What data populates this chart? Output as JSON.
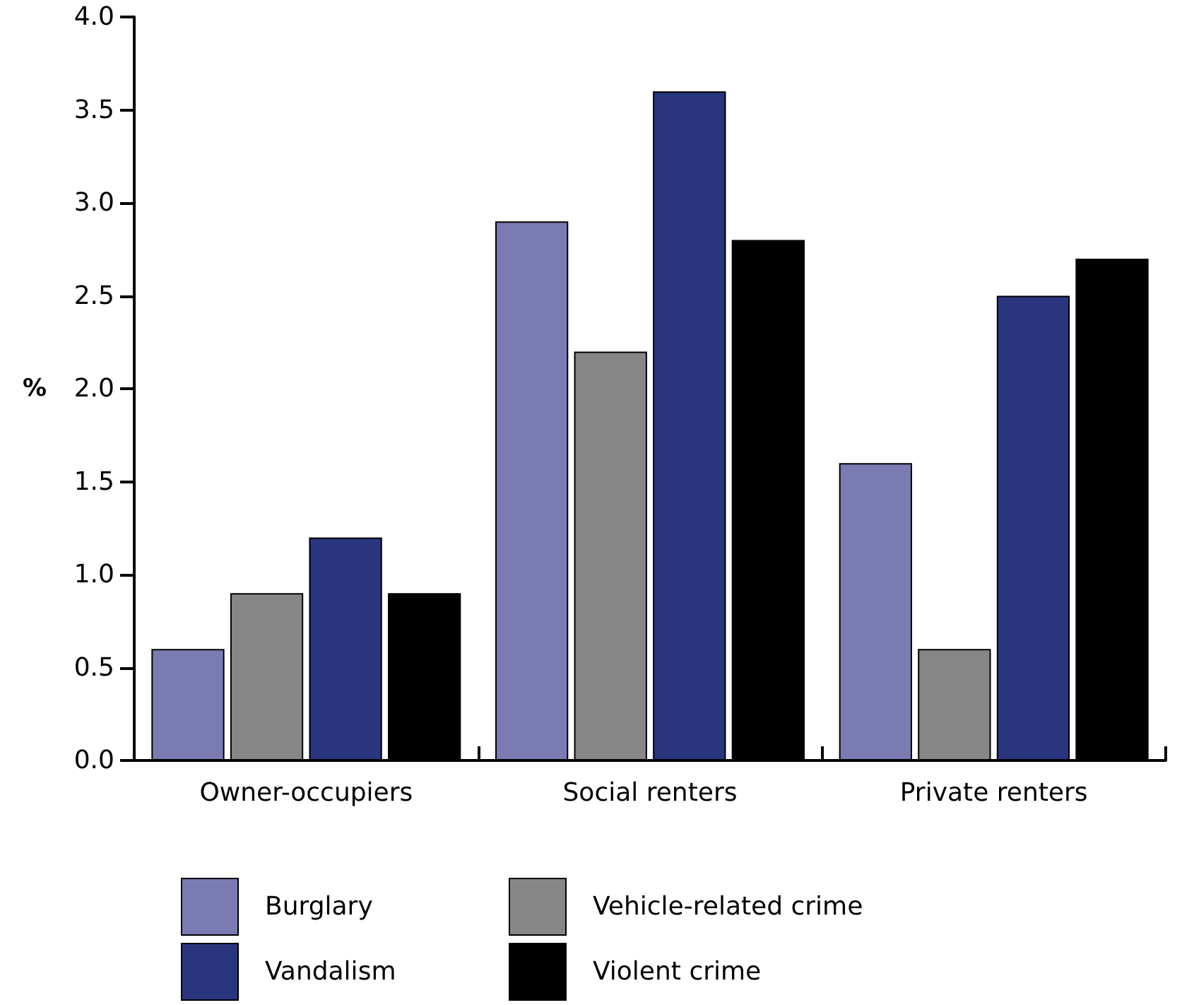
{
  "chart_data": {
    "type": "bar",
    "ylabel": "%",
    "categories": [
      "Owner-occupiers",
      "Social renters",
      "Private renters"
    ],
    "series": [
      {
        "name": "Burglary",
        "color": "#7b7bb4",
        "values": [
          0.6,
          2.9,
          1.6
        ]
      },
      {
        "name": "Vehicle-related crime",
        "color": "#878787",
        "values": [
          0.9,
          2.2,
          0.6
        ]
      },
      {
        "name": "Vandalism",
        "color": "#2a3580",
        "values": [
          1.2,
          3.6,
          2.5
        ]
      },
      {
        "name": "Violent crime",
        "color": "#000000",
        "values": [
          0.9,
          2.8,
          2.7
        ]
      }
    ],
    "ylim": [
      0,
      4
    ],
    "yticks": [
      {
        "value": 0,
        "label": "0.0"
      },
      0.5,
      {
        "value": 1,
        "label": "1.0"
      },
      1.5,
      {
        "value": 2,
        "label": "2.0"
      },
      2.5,
      {
        "value": 3,
        "label": "3.0"
      },
      3.5,
      {
        "value": 4,
        "label": "4.0"
      }
    ],
    "grid": false,
    "legend": "bottom"
  }
}
